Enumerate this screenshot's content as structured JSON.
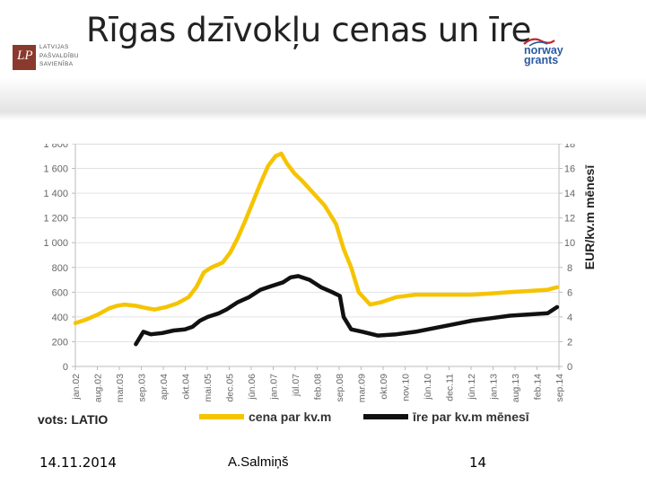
{
  "slide": {
    "title": "Rīgas dzīvokļu cenas un īre",
    "org_logo": {
      "lines": [
        "LATVIJAS",
        "PAŠVALDĪBU",
        "SAVIENĪBA"
      ],
      "mark": "LP"
    },
    "ng_logo": {
      "lines": [
        "norway",
        "grants"
      ]
    },
    "footer": {
      "date": "14.11.2014",
      "author": "A.Salmiņš",
      "page": "14"
    }
  },
  "colors": {
    "price": "#f5c400",
    "rent": "#111111",
    "grid": "#bbbbbb",
    "axis_text": "#666666"
  },
  "chart_data": {
    "type": "line",
    "source": "vots: LATIO",
    "ylabel_right": "EUR/kv.m mēnesī",
    "x_ticks": [
      "jan.02",
      "aug.02",
      "mar.03",
      "sep.03",
      "apr.04",
      "okt.04",
      "mai.05",
      "dec.05",
      "jūn.06",
      "jan.07",
      "jūl.07",
      "feb.08",
      "sep.08",
      "mar.09",
      "okt.09",
      "nov.10",
      "jūn.10",
      "dec.11",
      "jūn.12",
      "jan.13",
      "aug.13",
      "feb.14",
      "sep.14"
    ],
    "x_range": [
      2002.0,
      2014.8
    ],
    "y_left": {
      "range": [
        0,
        1800
      ],
      "ticks": [
        0,
        200,
        400,
        600,
        800,
        1000,
        1200,
        1400,
        1600,
        1800
      ],
      "tick_labels": [
        "0",
        "200",
        "400",
        "600",
        "800",
        "1 000",
        "1 200",
        "1 400",
        "1 600",
        "1 800"
      ]
    },
    "y_right": {
      "range": [
        0,
        18
      ],
      "ticks": [
        0,
        2,
        4,
        6,
        8,
        10,
        12,
        14,
        16,
        18
      ],
      "tick_labels": [
        "0",
        "2",
        "4",
        "6",
        "8",
        "10",
        "12",
        "14",
        "16",
        "18"
      ]
    },
    "legend": {
      "placement": "bottom"
    },
    "series": [
      {
        "name": "cena par kv.m",
        "axis": "left",
        "color": "#f5c400",
        "x": [
          2002.0,
          2002.3,
          2002.6,
          2002.9,
          2003.1,
          2003.3,
          2003.6,
          2003.9,
          2004.1,
          2004.4,
          2004.7,
          2005.0,
          2005.2,
          2005.4,
          2005.6,
          2005.9,
          2006.1,
          2006.3,
          2006.5,
          2006.7,
          2006.9,
          2007.1,
          2007.3,
          2007.45,
          2007.6,
          2007.8,
          2008.0,
          2008.3,
          2008.6,
          2008.9,
          2009.1,
          2009.3,
          2009.5,
          2009.8,
          2010.1,
          2010.5,
          2011.0,
          2011.5,
          2012.0,
          2012.5,
          2013.0,
          2013.5,
          2014.0,
          2014.5,
          2014.75
        ],
        "y": [
          350,
          380,
          420,
          470,
          490,
          500,
          490,
          470,
          460,
          480,
          510,
          560,
          640,
          760,
          800,
          840,
          920,
          1040,
          1180,
          1330,
          1480,
          1620,
          1700,
          1720,
          1640,
          1560,
          1500,
          1400,
          1300,
          1150,
          950,
          800,
          600,
          500,
          520,
          560,
          580,
          580,
          580,
          580,
          590,
          600,
          610,
          620,
          640
        ]
      },
      {
        "name": "īre par kv.m mēnesī",
        "axis": "right",
        "color": "#111111",
        "x": [
          2003.6,
          2003.8,
          2004.0,
          2004.3,
          2004.6,
          2004.9,
          2005.1,
          2005.3,
          2005.5,
          2005.8,
          2006.0,
          2006.3,
          2006.6,
          2006.9,
          2007.2,
          2007.5,
          2007.7,
          2007.9,
          2008.2,
          2008.5,
          2008.8,
          2009.0,
          2009.1,
          2009.3,
          2009.6,
          2010.0,
          2010.5,
          2011.0,
          2011.5,
          2012.0,
          2012.5,
          2013.0,
          2013.5,
          2014.0,
          2014.5,
          2014.75
        ],
        "y": [
          1.8,
          2.8,
          2.6,
          2.7,
          2.9,
          3.0,
          3.2,
          3.7,
          4.0,
          4.3,
          4.6,
          5.2,
          5.6,
          6.2,
          6.5,
          6.8,
          7.2,
          7.3,
          7.0,
          6.4,
          6.0,
          5.7,
          4.0,
          3.0,
          2.8,
          2.5,
          2.6,
          2.8,
          3.1,
          3.4,
          3.7,
          3.9,
          4.1,
          4.2,
          4.3,
          4.8
        ]
      }
    ]
  }
}
